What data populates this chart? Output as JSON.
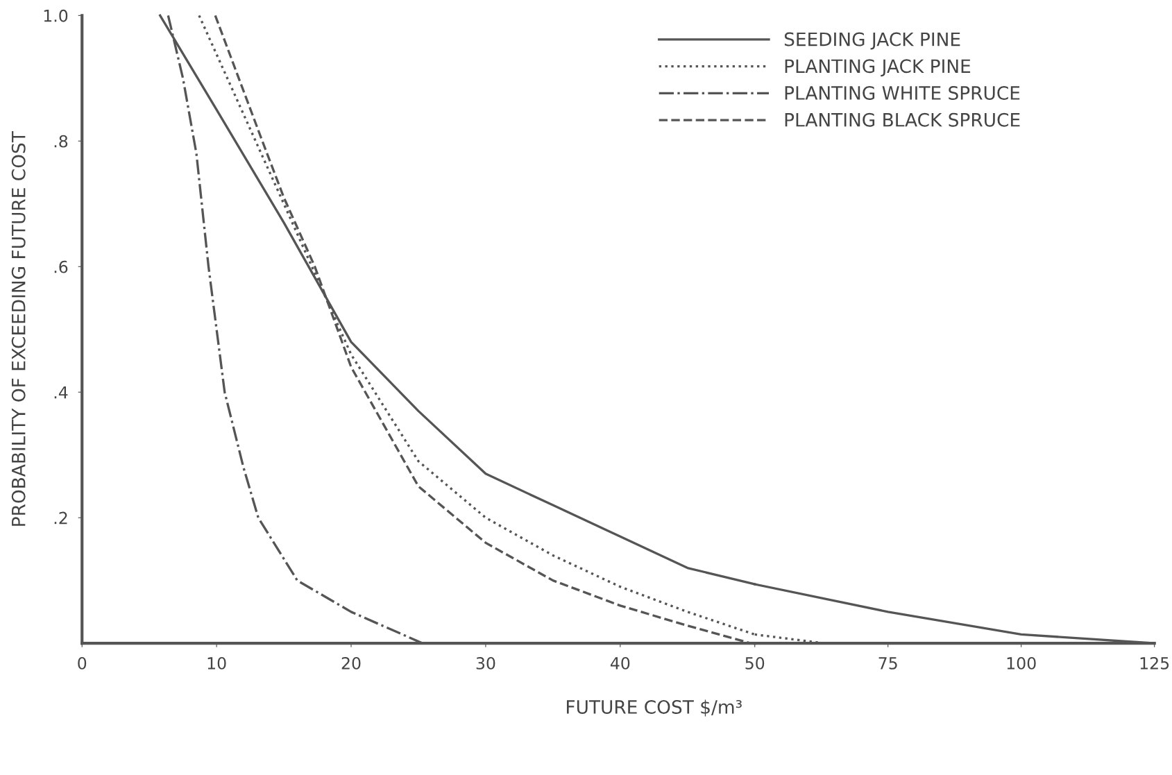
{
  "chart_data": [
    {
      "type": "line",
      "xlabel": "FUTURE COST $/m³",
      "ylabel": "PROBABILITY OF EXCEEDING FUTURE COST",
      "xlim": [
        0,
        50
      ],
      "xticks": [
        0,
        10,
        20,
        30,
        40,
        50
      ],
      "ylim": [
        0,
        1.0
      ],
      "yticks": [
        {
          "value": 0.2,
          "label": ".2"
        },
        {
          "value": 0.4,
          "label": ".4"
        },
        {
          "value": 0.6,
          "label": ".6"
        },
        {
          "value": 0.8,
          "label": ".8"
        },
        {
          "value": 1.0,
          "label": "1.0"
        }
      ],
      "grid": false,
      "legend": "top right",
      "marker": "none",
      "series": [
        {
          "name": "SEEDING JACK PINE",
          "color": "#555555",
          "line_style": "solid",
          "x": [
            5.8,
            10,
            15,
            20,
            25,
            30,
            35,
            40,
            45,
            50
          ],
          "values": [
            1.0,
            0.85,
            0.67,
            0.48,
            0.37,
            0.27,
            0.22,
            0.17,
            0.12,
            0.094
          ]
        },
        {
          "name": "PLANTING JACK PINE",
          "color": "#555555",
          "line_style": "dotted",
          "x": [
            8.7,
            15,
            20,
            25,
            30,
            35,
            40,
            45,
            50
          ],
          "values": [
            1.0,
            0.7,
            0.46,
            0.29,
            0.2,
            0.14,
            0.09,
            0.05,
            0.014
          ]
        },
        {
          "name": "PLANTING WHITE SPRUCE",
          "color": "#555555",
          "line_style": "dashdot",
          "x": [
            6.4,
            7.5,
            8.5,
            9.4,
            10.6,
            12,
            13.1,
            16,
            20,
            25.3
          ],
          "values": [
            1.0,
            0.9,
            0.78,
            0.6,
            0.4,
            0.28,
            0.2,
            0.1,
            0.05,
            0
          ]
        },
        {
          "name": "PLANTING BLACK SPRUCE",
          "color": "#555555",
          "line_style": "dashed",
          "x": [
            9.9,
            13.4,
            15,
            17.3,
            20,
            25,
            30,
            35,
            40,
            45,
            49.7
          ],
          "values": [
            1.0,
            0.8,
            0.71,
            0.6,
            0.44,
            0.25,
            0.16,
            0.1,
            0.06,
            0.028,
            0
          ]
        }
      ]
    },
    {
      "type": "line",
      "xlim": [
        50,
        125
      ],
      "xticks": [
        75,
        100,
        125
      ],
      "ylim": [
        0,
        1.0
      ],
      "tick_labels": "x",
      "grid": false,
      "marker": "none",
      "series": [
        {
          "color": "#555555",
          "line_style": "solid",
          "x": [
            50,
            75,
            100,
            125
          ],
          "values": [
            0.094,
            0.05,
            0.014,
            0
          ]
        },
        {
          "color": "#555555",
          "line_style": "dotted",
          "x": [
            50,
            63
          ],
          "values": [
            0.014,
            0
          ]
        }
      ]
    }
  ]
}
